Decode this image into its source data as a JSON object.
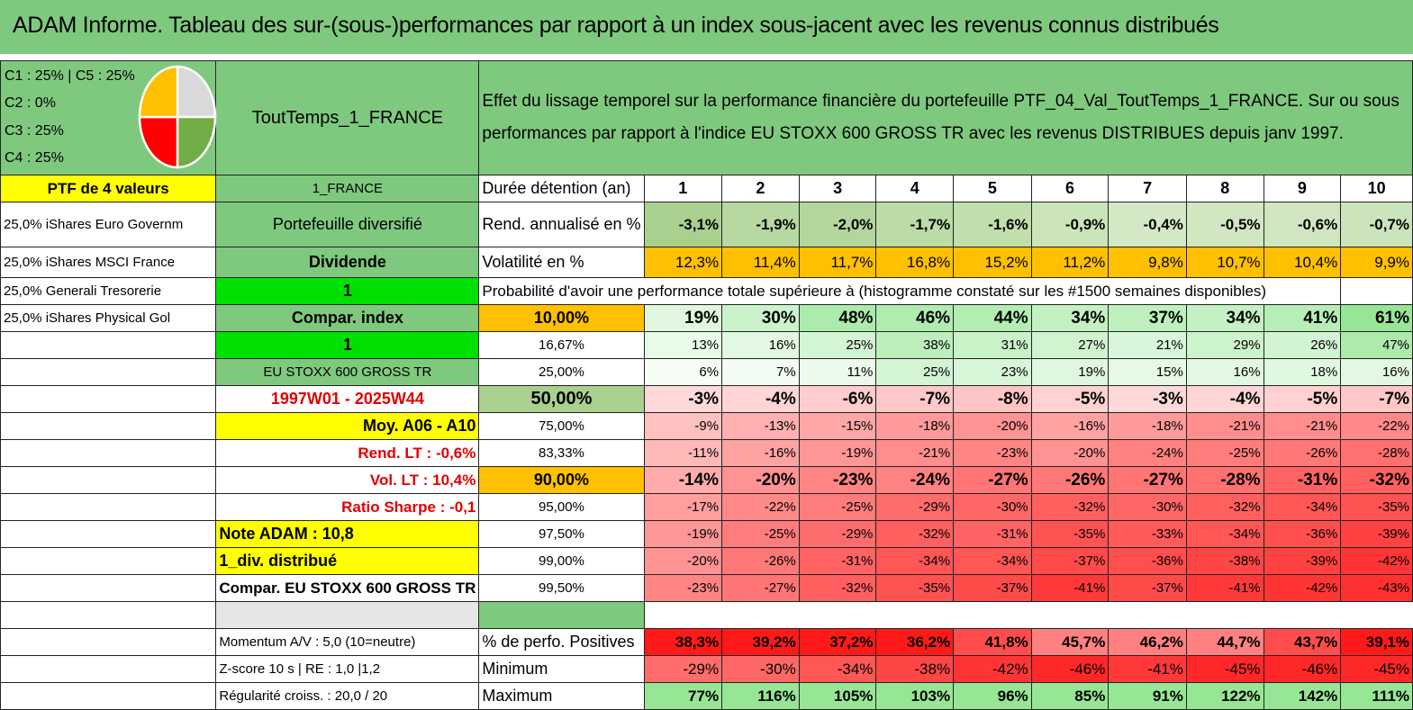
{
  "title": "ADAM Informe. Tableau des sur-(sous-)performances par rapport à un index sous-jacent avec les revenus connus distribués",
  "allocation": [
    "C1 : 25% | C5 : 25%",
    "C2 : 0%",
    "C3 : 25%",
    "C4 : 25%"
  ],
  "pie": {
    "colors": [
      "#d9d9d9",
      "#70ad47",
      "#ff0000",
      "#ffc000"
    ],
    "values": [
      25,
      25,
      25,
      25
    ]
  },
  "fund_name": "ToutTemps_1_FRANCE",
  "description": "Effet du lissage temporel sur la performance financière du portefeuille PTF_04_Val_ToutTemps_1_FRANCE. Sur ou sous performances par rapport à l'indice EU STOXX 600 GROSS TR avec les revenus DISTRIBUES depuis janv 1997.",
  "ptf_label": "PTF de 4 valeurs",
  "country": "1_FRANCE",
  "duration_label": "Durée détention (an)",
  "years": [
    "1",
    "2",
    "3",
    "4",
    "5",
    "6",
    "7",
    "8",
    "9",
    "10"
  ],
  "holdings": [
    "25,0% iShares Euro Governm",
    "25,0% iShares MSCI France",
    "25,0% Generali Tresorerie",
    "25,0% iShares Physical Gol"
  ],
  "portfolio_type": "Portefeuille diversifié",
  "dividend_label": "Dividende",
  "dividend_value": "1",
  "compar_index_label": "Compar. index",
  "compar_index_value": "1",
  "index_name": "EU STOXX 600 GROSS TR",
  "period": "1997W01 - 2025W44",
  "moy": "Moy. A06 - A10",
  "rend_lt": "Rend. LT : -0,6%",
  "vol_lt": "Vol. LT : 10,4%",
  "sharpe": "Ratio Sharpe : -0,1",
  "note": "Note ADAM : 10,8",
  "div_distrib": "1_div. distribué",
  "compar_full": "Compar. EU STOXX 600 GROSS TR",
  "rend_label": "Rend. annualisé en %",
  "rend": [
    "-3,1%",
    "-1,9%",
    "-2,0%",
    "-1,7%",
    "-1,6%",
    "-0,9%",
    "-0,4%",
    "-0,5%",
    "-0,6%",
    "-0,7%"
  ],
  "vol_label": "Volatilité en %",
  "vol": [
    "12,3%",
    "11,4%",
    "11,7%",
    "16,8%",
    "15,2%",
    "11,2%",
    "9,8%",
    "10,7%",
    "10,4%",
    "9,9%"
  ],
  "prob_label": "Probabilité d'avoir une performance totale supérieure à (histogramme constaté sur les #1500 semaines disponibles)",
  "quantiles": [
    {
      "p": "10,00%",
      "v": [
        "19%",
        "30%",
        "48%",
        "46%",
        "44%",
        "34%",
        "37%",
        "34%",
        "41%",
        "61%"
      ]
    },
    {
      "p": "16,67%",
      "v": [
        "13%",
        "16%",
        "25%",
        "38%",
        "31%",
        "27%",
        "21%",
        "29%",
        "26%",
        "47%"
      ]
    },
    {
      "p": "25,00%",
      "v": [
        "6%",
        "7%",
        "11%",
        "25%",
        "23%",
        "19%",
        "15%",
        "16%",
        "18%",
        "16%"
      ]
    },
    {
      "p": "50,00%",
      "v": [
        "-3%",
        "-4%",
        "-6%",
        "-7%",
        "-8%",
        "-5%",
        "-3%",
        "-4%",
        "-5%",
        "-7%"
      ]
    },
    {
      "p": "75,00%",
      "v": [
        "-9%",
        "-13%",
        "-15%",
        "-18%",
        "-20%",
        "-16%",
        "-18%",
        "-21%",
        "-21%",
        "-22%"
      ]
    },
    {
      "p": "83,33%",
      "v": [
        "-11%",
        "-16%",
        "-19%",
        "-21%",
        "-23%",
        "-20%",
        "-24%",
        "-25%",
        "-26%",
        "-28%"
      ]
    },
    {
      "p": "90,00%",
      "v": [
        "-14%",
        "-20%",
        "-23%",
        "-24%",
        "-27%",
        "-26%",
        "-27%",
        "-28%",
        "-31%",
        "-32%"
      ]
    },
    {
      "p": "95,00%",
      "v": [
        "-17%",
        "-22%",
        "-25%",
        "-29%",
        "-30%",
        "-32%",
        "-30%",
        "-32%",
        "-34%",
        "-35%"
      ]
    },
    {
      "p": "97,50%",
      "v": [
        "-19%",
        "-25%",
        "-29%",
        "-32%",
        "-31%",
        "-35%",
        "-33%",
        "-34%",
        "-36%",
        "-39%"
      ]
    },
    {
      "p": "99,00%",
      "v": [
        "-20%",
        "-26%",
        "-31%",
        "-34%",
        "-34%",
        "-37%",
        "-36%",
        "-38%",
        "-39%",
        "-42%"
      ]
    },
    {
      "p": "99,50%",
      "v": [
        "-23%",
        "-27%",
        "-32%",
        "-35%",
        "-37%",
        "-41%",
        "-37%",
        "-41%",
        "-42%",
        "-43%"
      ]
    }
  ],
  "momentum": "Momentum A/V : 5,0 (10=neutre)",
  "zscore": "Z-score 10 s | RE : 1,0 |1,2",
  "regularite": "Régularité croiss. : 20,0 / 20",
  "pos_label": "% de perfo. Positives",
  "pos": [
    "38,3%",
    "39,2%",
    "37,2%",
    "36,2%",
    "41,8%",
    "45,7%",
    "46,2%",
    "44,7%",
    "43,7%",
    "39,1%"
  ],
  "min_label": "Minimum",
  "min": [
    "-29%",
    "-30%",
    "-34%",
    "-38%",
    "-42%",
    "-46%",
    "-41%",
    "-45%",
    "-46%",
    "-45%"
  ],
  "max_label": "Maximum",
  "max": [
    "77%",
    "116%",
    "105%",
    "103%",
    "96%",
    "85%",
    "91%",
    "122%",
    "142%",
    "111%"
  ],
  "colors": {
    "header_green": "#7fc97f",
    "yellow": "#ffff00",
    "bright_green": "#00e000",
    "orange": "#ffc000",
    "red_text": "#e00000"
  }
}
